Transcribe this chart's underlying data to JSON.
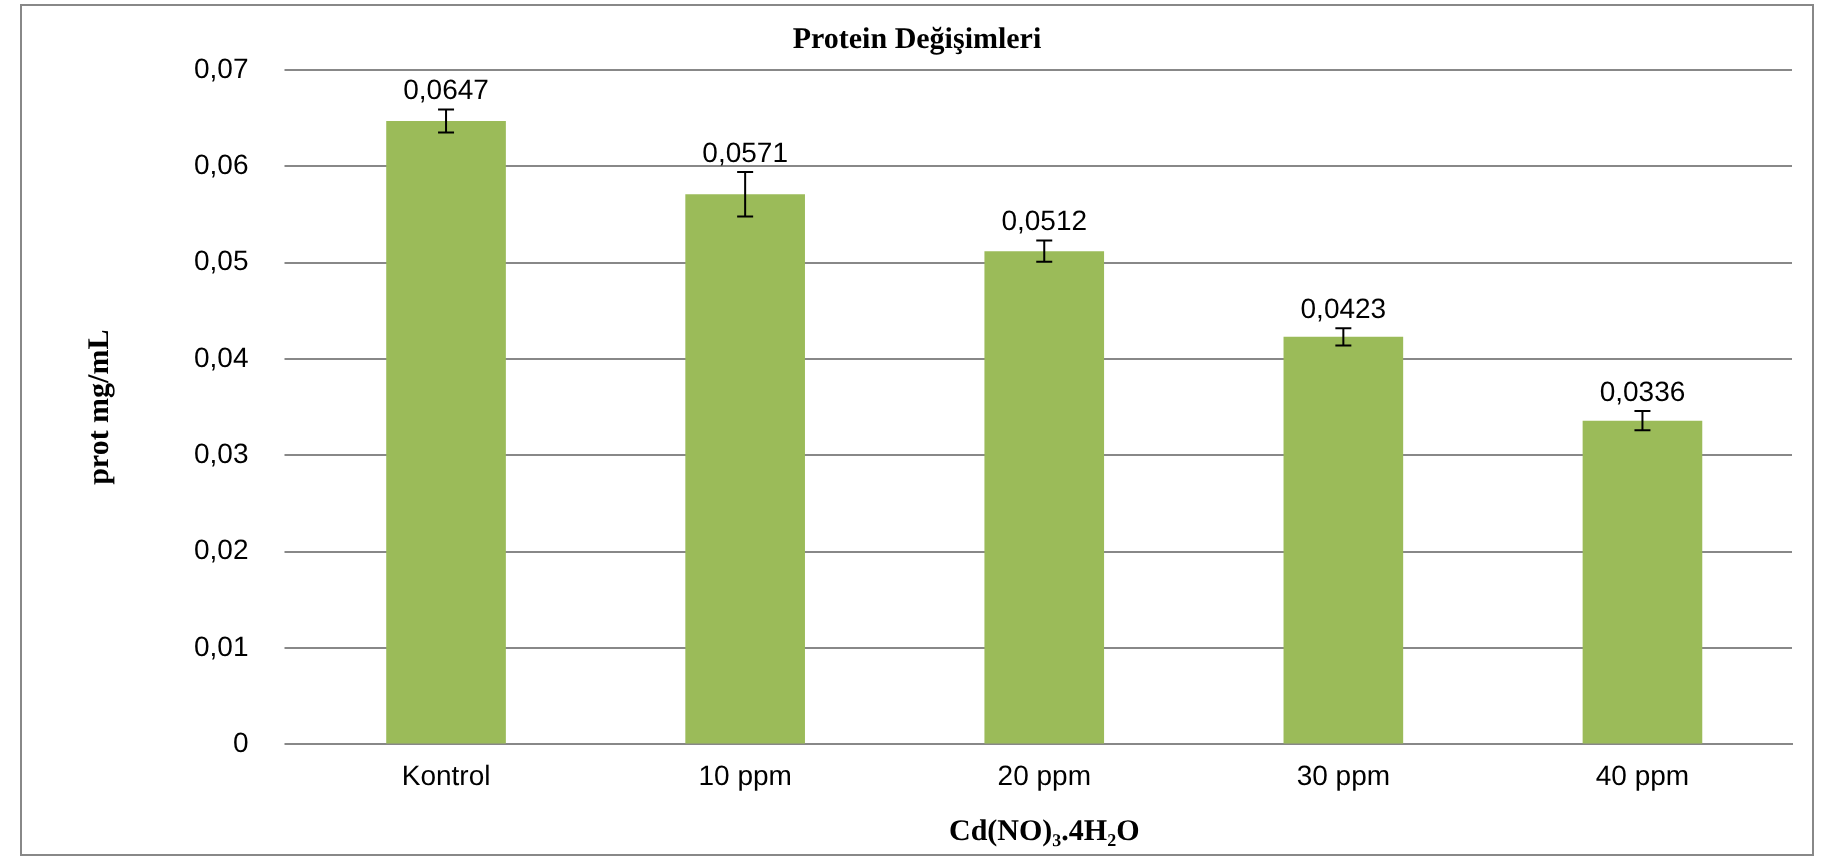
{
  "chart_data": {
    "type": "bar",
    "title": "Protein Değişimleri",
    "xlabel": "Cd(NO)₃.4H₂O",
    "ylabel": "prot mg/mL",
    "categories": [
      "Kontrol",
      "10 ppm",
      "20 ppm",
      "30 ppm",
      "40 ppm"
    ],
    "values": [
      0.0647,
      0.0571,
      0.0512,
      0.0423,
      0.0336
    ],
    "errors": [
      0.0012,
      0.0023,
      0.0011,
      0.0009,
      0.001
    ],
    "value_labels": [
      "0,0647",
      "0,0571",
      "0,0512",
      "0,0423",
      "0,0336"
    ],
    "color": "#9bbb59",
    "ylim": [
      0,
      0.07
    ],
    "yticks": [
      {
        "value": 0,
        "label": "0"
      },
      {
        "value": 0.01,
        "label": "0,01"
      },
      {
        "value": 0.02,
        "label": "0,02"
      },
      {
        "value": 0.03,
        "label": "0,03"
      },
      {
        "value": 0.04,
        "label": "0,04"
      },
      {
        "value": 0.05,
        "label": "0,05"
      },
      {
        "value": 0.06,
        "label": "0,06"
      },
      {
        "value": 0.07,
        "label": "0,07"
      }
    ],
    "grid": "y",
    "legend": false
  }
}
